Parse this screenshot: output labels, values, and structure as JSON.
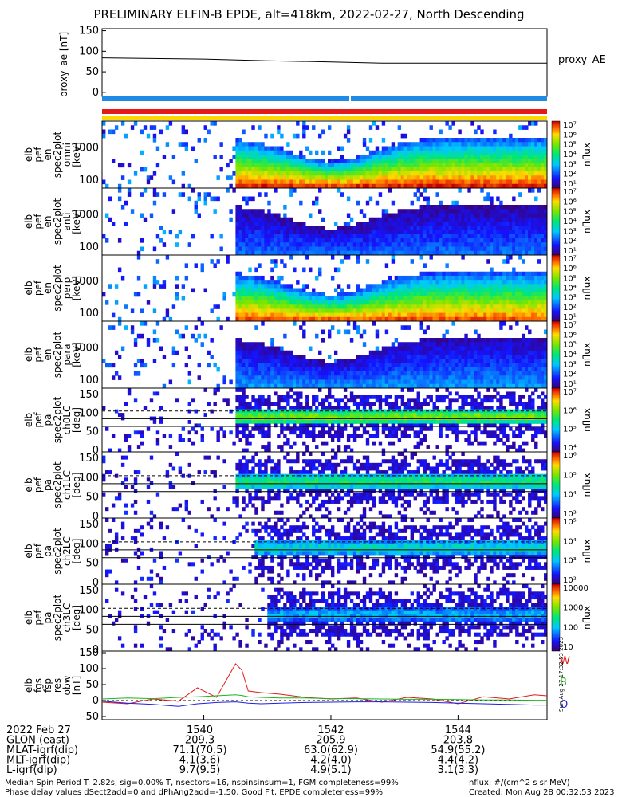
{
  "title": "PRELIMINARY ELFIN-B EPDE, alt=418km, 2022-02-27, North Descending",
  "colors": {
    "proxy_line": "#000000",
    "bar_blue": "#1e8ce6",
    "bar_red": "#e61919",
    "bar_yellow": "#ffd700"
  },
  "chart_data": [
    {
      "type": "line",
      "panel": "proxy_ae",
      "ylabel": "proxy_ae [nT]",
      "legend": "proxy_AE",
      "ylim": [
        -10,
        155
      ],
      "yticks": [
        "150",
        "100",
        "50",
        "0"
      ],
      "x": [
        1538.4,
        1540,
        1541,
        1542,
        1542.8,
        1544,
        1545.4
      ],
      "values": [
        84,
        81,
        77,
        74,
        71,
        71,
        71
      ]
    },
    {
      "type": "heatmap",
      "panel": "pef_en_spec2plot_omni",
      "ylabel": [
        "elb",
        "pef",
        "en",
        "spec2plot",
        "omni",
        "[keV]"
      ],
      "yticks": [
        "1000",
        "100"
      ],
      "colorbar_label": "nflux",
      "colorbar_ticks": [
        "10⁷",
        "10⁶",
        "10⁵",
        "10⁴",
        "10³",
        "10²",
        "10¹"
      ]
    },
    {
      "type": "heatmap",
      "panel": "pef_en_spec2plot_anti",
      "ylabel": [
        "elb",
        "pef",
        "en",
        "spec2plot",
        "anti",
        "[keV]"
      ],
      "yticks": [
        "1000",
        "100"
      ],
      "colorbar_label": "nflux",
      "colorbar_ticks": [
        "10⁷",
        "10⁶",
        "10⁵",
        "10⁴",
        "10³",
        "10²",
        "10¹"
      ]
    },
    {
      "type": "heatmap",
      "panel": "pef_en_spec2plot_perp",
      "ylabel": [
        "elb",
        "pef",
        "en",
        "spec2plot",
        "perp",
        "[keV]"
      ],
      "yticks": [
        "1000",
        "100"
      ],
      "colorbar_label": "nflux",
      "colorbar_ticks": [
        "10⁷",
        "10⁶",
        "10⁵",
        "10⁴",
        "10³",
        "10²",
        "10¹"
      ]
    },
    {
      "type": "heatmap",
      "panel": "pef_en_spec2plot_para",
      "ylabel": [
        "elb",
        "pef",
        "en",
        "spec2plot",
        "para",
        "[keV]"
      ],
      "yticks": [
        "1000",
        "100"
      ],
      "colorbar_label": "nflux",
      "colorbar_ticks": [
        "10⁷",
        "10⁶",
        "10⁵",
        "10⁴",
        "10³",
        "10²",
        "10¹"
      ]
    },
    {
      "type": "heatmap",
      "panel": "pef_pa_spec2plot_ch0LC",
      "ylabel": [
        "elb",
        "pef",
        "pa",
        "spec2plot",
        "ch0LC",
        "[deg]"
      ],
      "yticks": [
        "150",
        "100",
        "50",
        "0"
      ],
      "colorbar_label": "nflux",
      "colorbar_ticks": [
        "10⁷",
        "10⁶",
        "10⁵",
        "10⁴"
      ]
    },
    {
      "type": "heatmap",
      "panel": "pef_pa_spec2plot_ch1LC",
      "ylabel": [
        "elb",
        "pef",
        "pa",
        "spec2plot",
        "ch1LC",
        "[deg]"
      ],
      "yticks": [
        "150",
        "100",
        "50",
        "0"
      ],
      "colorbar_label": "nflux",
      "colorbar_ticks": [
        "10⁶",
        "10⁵",
        "10⁴",
        "10³"
      ]
    },
    {
      "type": "heatmap",
      "panel": "pef_pa_spec2plot_ch2LC",
      "ylabel": [
        "elb",
        "pef",
        "pa",
        "spec2plot",
        "ch2LC",
        "[deg]"
      ],
      "yticks": [
        "150",
        "100",
        "50",
        "0"
      ],
      "colorbar_label": "nflux",
      "colorbar_ticks": [
        "10⁵",
        "10⁴",
        "10³",
        "10²"
      ]
    },
    {
      "type": "heatmap",
      "panel": "pef_pa_spec2plot_ch3LC",
      "ylabel": [
        "elb",
        "pef",
        "pa",
        "spec2plot",
        "ch3LC",
        "[deg]"
      ],
      "yticks": [
        "150",
        "100",
        "50",
        "0"
      ],
      "colorbar_label": "nflux",
      "colorbar_ticks": [
        "10000",
        "1000",
        "100",
        "10"
      ]
    },
    {
      "type": "line",
      "panel": "fgs_fsp_res_obw",
      "ylabel": [
        "elb",
        "fgs",
        "fsp",
        "res",
        "obw",
        "[nT]"
      ],
      "ylim": [
        -60,
        155
      ],
      "yticks": [
        "150",
        "100",
        "50",
        "0",
        "-50"
      ],
      "legend": [
        "W",
        "B",
        "O"
      ],
      "legend_colors": [
        "#e61919",
        "#1eb41e",
        "#1e1ee6"
      ],
      "x": [
        1538.4,
        1538.8,
        1539.2,
        1539.6,
        1539.9,
        1540.2,
        1540.5,
        1540.6,
        1540.7,
        1540.9,
        1541.2,
        1541.6,
        1542,
        1542.4,
        1542.8,
        1543.2,
        1543.6,
        1544,
        1544.4,
        1544.8,
        1545.2,
        1545.4
      ],
      "series": [
        {
          "name": "W",
          "values": [
            -5,
            -10,
            5,
            -2,
            40,
            10,
            115,
            95,
            30,
            25,
            20,
            10,
            5,
            8,
            -5,
            10,
            5,
            -10,
            12,
            5,
            18,
            15
          ]
        },
        {
          "name": "B",
          "values": [
            5,
            8,
            6,
            10,
            12,
            15,
            18,
            16,
            12,
            10,
            8,
            8,
            6,
            6,
            5,
            4,
            4,
            3,
            2,
            2,
            1,
            1
          ]
        },
        {
          "name": "O",
          "values": [
            -2,
            -8,
            -12,
            -18,
            -10,
            -6,
            -4,
            -6,
            -8,
            -10,
            -8,
            -6,
            -5,
            -4,
            -4,
            -5,
            -6,
            -8,
            -10,
            -12,
            -14,
            -14
          ]
        }
      ]
    }
  ],
  "time_axis": {
    "rows": [
      {
        "label": "2022 Feb 27",
        "values": [
          "1540",
          "1542",
          "1544"
        ]
      },
      {
        "label": "GLON (east)",
        "values": [
          "209.3",
          "205.9",
          "203.8"
        ]
      },
      {
        "label": "MLAT-igrf(dip)",
        "values": [
          "71.1(70.5)",
          "63.0(62.9)",
          "54.9(55.2)"
        ]
      },
      {
        "label": "MLT-igrf(dip)",
        "values": [
          "4.1(3.6)",
          "4.2(4.0)",
          "4.4(4.2)"
        ]
      },
      {
        "label": "L-igrf(dip)",
        "values": [
          "9.7(9.5)",
          "4.9(5.1)",
          "3.1(3.3)"
        ]
      }
    ]
  },
  "footer": {
    "line1": "Median Spin Period T: 2.82s, sig=0.00% T, nsectors=16, nspinsinsum=1, FGM completeness=99%",
    "line2": "Phase delay values dSect2add=0 and dPhAng2add=-1.50, Good Fit, EPDE completeness=99%",
    "units": "nflux: #/(cm^2 s sr MeV)",
    "created": "Created: Mon Aug 28 00:32:53 2023",
    "side_stamp": "Sun Aug 27 17:32:53 2023"
  }
}
